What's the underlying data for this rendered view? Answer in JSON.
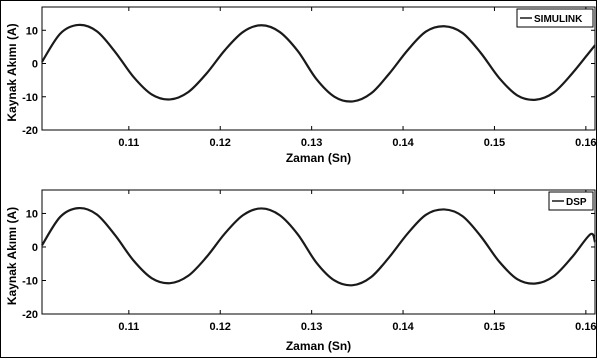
{
  "chart_data": [
    {
      "type": "line",
      "xlabel": "Zaman (Sn)",
      "ylabel": "Kaynak Akımı (A)",
      "xlim": [
        0.1005,
        0.161
      ],
      "ylim": [
        -20,
        17
      ],
      "xticks": [
        "0.11",
        "0.12",
        "0.13",
        "0.14",
        "0.15",
        "0.16"
      ],
      "yticks": [
        "10",
        "0",
        "-10",
        "-20"
      ],
      "ytick_values": [
        10,
        0,
        -10,
        -20
      ],
      "xtick_values": [
        0.11,
        0.12,
        0.13,
        0.14,
        0.15,
        0.16
      ],
      "legend_position": "top-right",
      "grid": false,
      "color": "#1a1a1a",
      "series": [
        {
          "name": "SIMULINK",
          "x": [
            0.1005,
            0.1025,
            0.1045,
            0.1065,
            0.1085,
            0.1105,
            0.1125,
            0.1145,
            0.1165,
            0.1185,
            0.1205,
            0.1225,
            0.1245,
            0.1265,
            0.1285,
            0.1305,
            0.1325,
            0.1345,
            0.1365,
            0.1385,
            0.1405,
            0.1425,
            0.1445,
            0.1465,
            0.1485,
            0.1505,
            0.1525,
            0.1545,
            0.1565,
            0.1585,
            0.1605,
            0.161
          ],
          "y": [
            0.5,
            9.0,
            11.6,
            9.7,
            3.5,
            -4.0,
            -9.3,
            -10.8,
            -8.6,
            -3.0,
            4.0,
            9.5,
            11.5,
            9.5,
            3.7,
            -4.6,
            -10.0,
            -11.4,
            -9.0,
            -3.0,
            4.0,
            9.6,
            11.2,
            9.2,
            3.2,
            -4.3,
            -9.6,
            -10.9,
            -8.7,
            -3.0,
            3.8,
            5.5
          ]
        }
      ]
    },
    {
      "type": "line",
      "xlabel": "Zaman (Sn)",
      "ylabel": "Kaynak Akımı (A)",
      "xlim": [
        0.1005,
        0.161
      ],
      "ylim": [
        -20,
        17
      ],
      "xticks": [
        "0.11",
        "0.12",
        "0.13",
        "0.14",
        "0.15",
        "0.16"
      ],
      "yticks": [
        "10",
        "0",
        "-10",
        "-20"
      ],
      "ytick_values": [
        10,
        0,
        -10,
        -20
      ],
      "xtick_values": [
        0.11,
        0.12,
        0.13,
        0.14,
        0.15,
        0.16
      ],
      "legend_position": "top-right",
      "grid": false,
      "color": "#1a1a1a",
      "series": [
        {
          "name": "DSP",
          "x": [
            0.1005,
            0.1025,
            0.1045,
            0.1065,
            0.1085,
            0.1105,
            0.1125,
            0.1145,
            0.1165,
            0.1185,
            0.1205,
            0.1225,
            0.1245,
            0.1265,
            0.1285,
            0.1305,
            0.1325,
            0.1345,
            0.1365,
            0.1385,
            0.1405,
            0.1425,
            0.1445,
            0.1465,
            0.1485,
            0.1505,
            0.1525,
            0.1545,
            0.1565,
            0.1585,
            0.1605,
            0.161
          ],
          "y": [
            0.5,
            9.0,
            11.6,
            9.7,
            3.5,
            -4.0,
            -9.3,
            -10.8,
            -8.6,
            -3.0,
            4.0,
            9.5,
            11.5,
            9.5,
            3.7,
            -4.6,
            -10.0,
            -11.4,
            -9.0,
            -3.0,
            4.0,
            9.6,
            11.2,
            9.2,
            3.2,
            -4.3,
            -9.6,
            -10.9,
            -8.7,
            -3.0,
            3.8,
            1.5
          ]
        }
      ]
    }
  ]
}
